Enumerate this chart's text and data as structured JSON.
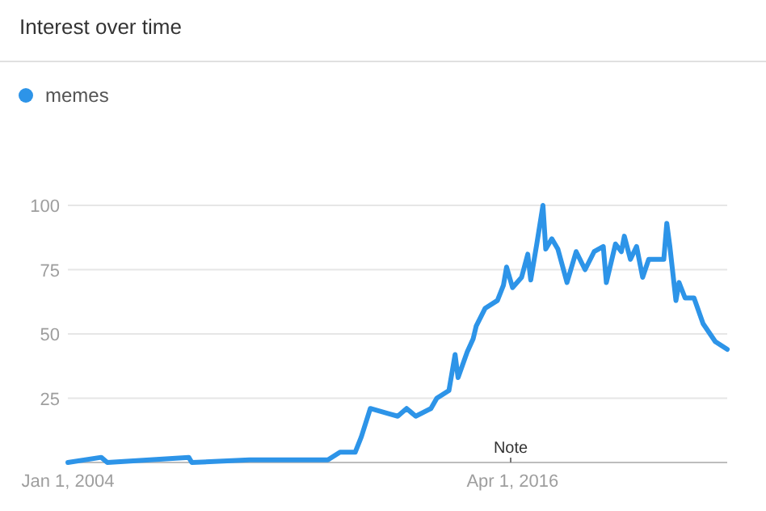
{
  "chart_data": {
    "type": "line",
    "title": "Interest over time",
    "legend": "top left",
    "grid": "y",
    "marker": "none",
    "line_style": "solid",
    "x": [
      "2004-01",
      "2004-12",
      "2005-02",
      "2007-05",
      "2007-06",
      "2009-01",
      "2011-03",
      "2011-07",
      "2011-12",
      "2012-02",
      "2012-05",
      "2012-11",
      "2013-02",
      "2013-05",
      "2013-08",
      "2014-01",
      "2014-03",
      "2014-07",
      "2014-09",
      "2014-10",
      "2015-01",
      "2015-03",
      "2015-04",
      "2015-07",
      "2015-11",
      "2016-01",
      "2016-02",
      "2016-04",
      "2016-07",
      "2016-09",
      "2016-10",
      "2016-12",
      "2017-02",
      "2017-03",
      "2017-05",
      "2017-07",
      "2017-10",
      "2018-01",
      "2018-04",
      "2018-07",
      "2018-10",
      "2018-11",
      "2019-02",
      "2019-04",
      "2019-05",
      "2019-07",
      "2019-09",
      "2019-11",
      "2020-01",
      "2020-06",
      "2020-07",
      "2020-08",
      "2020-10",
      "2020-11",
      "2021-01",
      "2021-04",
      "2021-07",
      "2021-11",
      "2022-03"
    ],
    "series": [
      {
        "name": "memes",
        "color": "#2d94e8",
        "values": [
          0,
          2,
          0,
          2,
          0,
          1,
          1,
          4,
          4,
          10,
          21,
          19,
          18,
          21,
          18,
          21,
          25,
          28,
          42,
          33,
          43,
          48,
          53,
          60,
          63,
          69,
          76,
          68,
          72,
          81,
          71,
          85,
          100,
          83,
          87,
          83,
          70,
          82,
          75,
          82,
          84,
          70,
          85,
          82,
          88,
          79,
          84,
          72,
          79,
          79,
          93,
          84,
          63,
          70,
          64,
          64,
          54,
          47,
          44
        ]
      }
    ],
    "ylim": [
      0,
      100
    ],
    "yticks": [
      {
        "value": 0,
        "label": null
      },
      25,
      50,
      75,
      100
    ],
    "xlim": [
      "2004-01",
      "2022-03"
    ],
    "xticks": [
      {
        "value": "2004-01-01",
        "label": "Jan 1, 2004"
      },
      {
        "value": "2016-04-01",
        "label": "Apr 1, 2016"
      }
    ],
    "annotations": [
      "Note"
    ]
  }
}
